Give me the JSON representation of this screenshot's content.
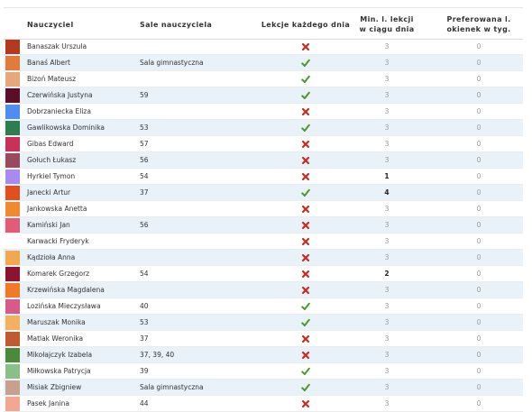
{
  "colors": {
    "header_text": "#333333",
    "row_alt": "#e9f1f9",
    "check": "#4a9a2c",
    "cross": "#cc2a1c"
  },
  "header": {
    "name": "Nauczyciel",
    "rooms": "Sale nauczyciela",
    "daily": "Lekcje każdego dnia",
    "min_line1": "Min. l. lekcji",
    "min_line2": "w ciągu dnia",
    "gap_line1": "Preferowana l.",
    "gap_line2": "okienek w tyg."
  },
  "rows": [
    {
      "name": "Banaszak Urszula",
      "color": "#b33a1f",
      "rooms": "",
      "daily": "cross-icon",
      "min": "3",
      "min_strong": false,
      "gaps": "0"
    },
    {
      "name": "Banaś Albert",
      "color": "#e07b3c",
      "rooms": "Sala gimnastyczna",
      "daily": "check-icon",
      "min": "3",
      "min_strong": false,
      "gaps": "0"
    },
    {
      "name": "Bizoń Mateusz",
      "color": "#e8a77a",
      "rooms": "",
      "daily": "check-icon",
      "min": "3",
      "min_strong": false,
      "gaps": "0"
    },
    {
      "name": "Czerwińska Justyna",
      "color": "#5a0e2a",
      "rooms": "59",
      "daily": "check-icon",
      "min": "3",
      "min_strong": false,
      "gaps": "0"
    },
    {
      "name": "Dobrzaniecka Eliza",
      "color": "#4f8ef0",
      "rooms": "",
      "daily": "cross-icon",
      "min": "3",
      "min_strong": false,
      "gaps": "0"
    },
    {
      "name": "Gawlikowska Dominika",
      "color": "#2e7d4f",
      "rooms": "53",
      "daily": "check-icon",
      "min": "3",
      "min_strong": false,
      "gaps": "0"
    },
    {
      "name": "Gibas Edward",
      "color": "#c8325a",
      "rooms": "57",
      "daily": "cross-icon",
      "min": "3",
      "min_strong": false,
      "gaps": "0"
    },
    {
      "name": "Gołuch Łukasz",
      "color": "#9a4a5e",
      "rooms": "56",
      "daily": "cross-icon",
      "min": "3",
      "min_strong": false,
      "gaps": "0"
    },
    {
      "name": "Hyrkiel Tymon",
      "color": "#a78bf0",
      "rooms": "54",
      "daily": "cross-icon",
      "min": "1",
      "min_strong": true,
      "gaps": "0"
    },
    {
      "name": "Janecki Artur",
      "color": "#e0501e",
      "rooms": "37",
      "daily": "check-icon",
      "min": "4",
      "min_strong": true,
      "gaps": "0"
    },
    {
      "name": "Jankowska Anetta",
      "color": "#f08a30",
      "rooms": "",
      "daily": "cross-icon",
      "min": "3",
      "min_strong": false,
      "gaps": "0"
    },
    {
      "name": "Kamiński Jan",
      "color": "#e05c78",
      "rooms": "56",
      "daily": "cross-icon",
      "min": "3",
      "min_strong": false,
      "gaps": "0"
    },
    {
      "name": "Karwacki Fryderyk",
      "color": "#ffffff",
      "rooms": "",
      "daily": "cross-icon",
      "min": "3",
      "min_strong": false,
      "gaps": "0"
    },
    {
      "name": "Kądzioła Anna",
      "color": "#f2a850",
      "rooms": "",
      "daily": "cross-icon",
      "min": "3",
      "min_strong": false,
      "gaps": "0"
    },
    {
      "name": "Komarek Grzegorz",
      "color": "#8c1430",
      "rooms": "54",
      "daily": "cross-icon",
      "min": "2",
      "min_strong": true,
      "gaps": "0"
    },
    {
      "name": "Krzewińska Magdalena",
      "color": "#f07a28",
      "rooms": "",
      "daily": "cross-icon",
      "min": "3",
      "min_strong": false,
      "gaps": "0"
    },
    {
      "name": "Lozińska Mieczysława",
      "color": "#d65a8a",
      "rooms": "40",
      "daily": "check-icon",
      "min": "3",
      "min_strong": false,
      "gaps": "0"
    },
    {
      "name": "Maruszak Monika",
      "color": "#f2b060",
      "rooms": "53",
      "daily": "check-icon",
      "min": "3",
      "min_strong": false,
      "gaps": "0"
    },
    {
      "name": "Matlak Weronika",
      "color": "#c05a30",
      "rooms": "37",
      "daily": "cross-icon",
      "min": "3",
      "min_strong": false,
      "gaps": "0"
    },
    {
      "name": "Mikołajczyk Izabela",
      "color": "#4a8a3a",
      "rooms": "37, 39, 40",
      "daily": "cross-icon",
      "min": "3",
      "min_strong": false,
      "gaps": "0"
    },
    {
      "name": "Miłkowska Patrycja",
      "color": "#8abf8a",
      "rooms": "39",
      "daily": "check-icon",
      "min": "3",
      "min_strong": false,
      "gaps": "0"
    },
    {
      "name": "Misiak Zbigniew",
      "color": "#c8a090",
      "rooms": "Sala gimnastyczna",
      "daily": "check-icon",
      "min": "3",
      "min_strong": false,
      "gaps": "0"
    },
    {
      "name": "Pasek Janina",
      "color": "#f2a890",
      "rooms": "44",
      "daily": "cross-icon",
      "min": "3",
      "min_strong": false,
      "gaps": "0"
    }
  ]
}
